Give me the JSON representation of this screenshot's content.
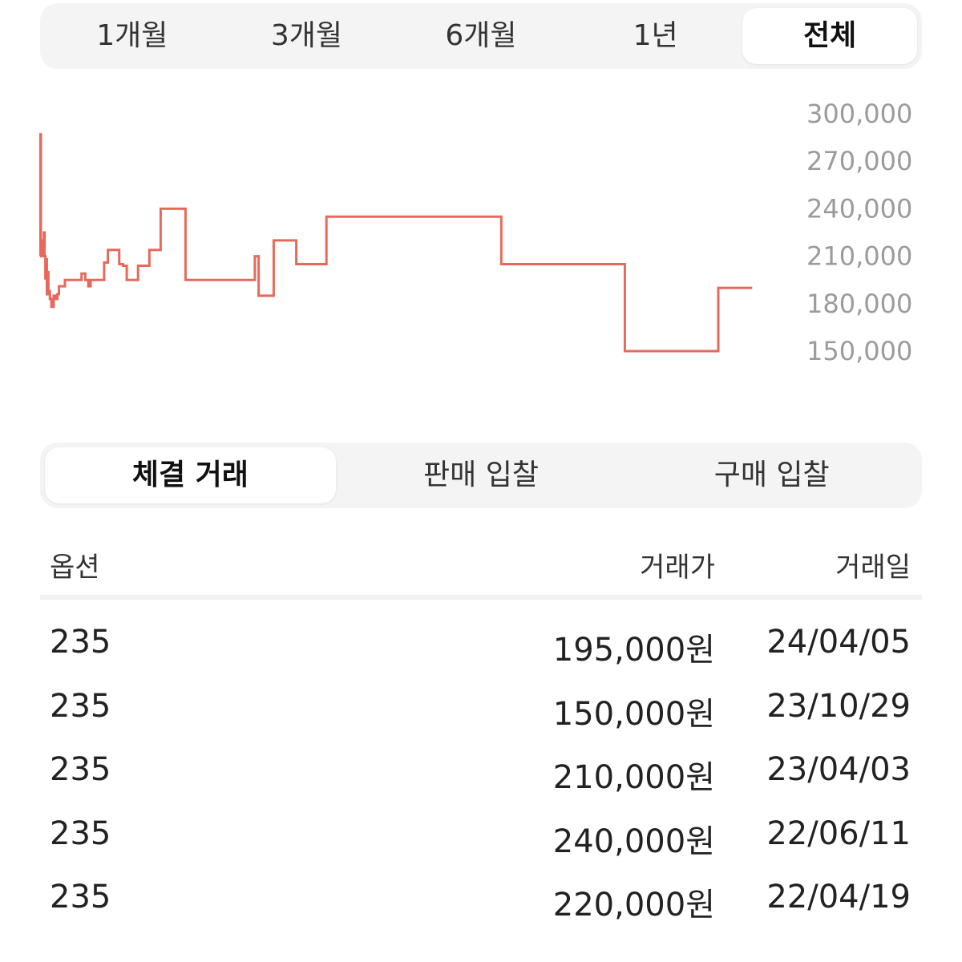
{
  "period_tabs": [
    "1개월",
    "3개월",
    "6개월",
    "1년",
    "전체"
  ],
  "period_active_index": 4,
  "trade_tabs": [
    "체결 거래",
    "판매 입찰",
    "구매 입찰"
  ],
  "trade_active_index": 0,
  "table": {
    "headers": {
      "option": "옵션",
      "price": "거래가",
      "date": "거래일"
    },
    "rows": [
      {
        "option": "235",
        "price": "195,000원",
        "date": "24/04/05"
      },
      {
        "option": "235",
        "price": "150,000원",
        "date": "23/10/29"
      },
      {
        "option": "235",
        "price": "210,000원",
        "date": "23/04/03"
      },
      {
        "option": "235",
        "price": "240,000원",
        "date": "22/06/11"
      },
      {
        "option": "235",
        "price": "220,000원",
        "date": "22/04/19"
      }
    ]
  },
  "chart_data": {
    "type": "line",
    "step": true,
    "line_color": "#e8695b",
    "y_axis_position": "right",
    "ylim": [
      150000,
      300000
    ],
    "yticks": [
      "300,000",
      "270,000",
      "240,000",
      "210,000",
      "180,000",
      "150,000"
    ],
    "ytick_values": [
      300000,
      270000,
      240000,
      210000,
      180000,
      150000
    ],
    "xlim": [
      0,
      1000
    ],
    "values": [
      [
        0,
        210000
      ],
      [
        0.5,
        287000
      ],
      [
        1,
        217000
      ],
      [
        2,
        210000
      ],
      [
        3,
        220000
      ],
      [
        4,
        212000
      ],
      [
        5,
        225000
      ],
      [
        6,
        210000
      ],
      [
        7,
        196000
      ],
      [
        8,
        208000
      ],
      [
        9,
        186000
      ],
      [
        10,
        200000
      ],
      [
        11,
        188000
      ],
      [
        13,
        183000
      ],
      [
        15,
        178000
      ],
      [
        18,
        185000
      ],
      [
        20,
        183000
      ],
      [
        23,
        186000
      ],
      [
        25,
        191000
      ],
      [
        28,
        191000
      ],
      [
        33,
        195000
      ],
      [
        50,
        195000
      ],
      [
        55,
        199000
      ],
      [
        60,
        195000
      ],
      [
        64,
        191000
      ],
      [
        67,
        195000
      ],
      [
        70,
        195000
      ],
      [
        83,
        195000
      ],
      [
        85,
        206000
      ],
      [
        90,
        214000
      ],
      [
        100,
        214000
      ],
      [
        105,
        205000
      ],
      [
        110,
        204000
      ],
      [
        115,
        195000
      ],
      [
        125,
        195000
      ],
      [
        130,
        204000
      ],
      [
        140,
        204000
      ],
      [
        145,
        214000
      ],
      [
        160,
        240000
      ],
      [
        185,
        240000
      ],
      [
        193,
        195000
      ],
      [
        280,
        195000
      ],
      [
        285,
        210000
      ],
      [
        290,
        185000
      ],
      [
        303,
        185000
      ],
      [
        310,
        220000
      ],
      [
        335,
        220000
      ],
      [
        340,
        205000
      ],
      [
        375,
        205000
      ],
      [
        380,
        235000
      ],
      [
        605,
        235000
      ],
      [
        612,
        205000
      ],
      [
        770,
        205000
      ],
      [
        776,
        150000
      ],
      [
        895,
        150000
      ],
      [
        900,
        190000
      ],
      [
        945,
        190000
      ]
    ]
  }
}
